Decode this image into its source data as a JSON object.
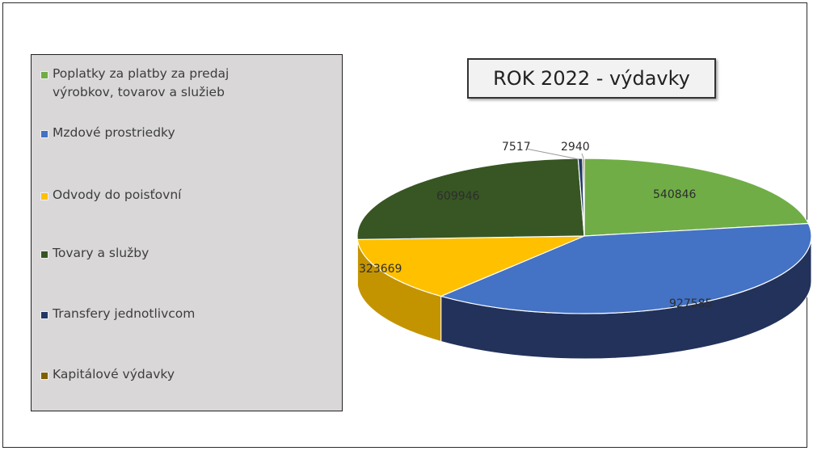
{
  "chart_data": {
    "type": "pie",
    "title": "ROK 2022 - výdavky",
    "legend_position": "left",
    "slices": [
      {
        "name": "Poplatky za platby za predaj výrobkov, tovarov a služieb",
        "value": 540846,
        "color": "#70ad47",
        "dark": "#4e7a31",
        "label": "540846"
      },
      {
        "name": "Mzdové prostriedky",
        "value": 927585,
        "color": "#4472c4",
        "dark": "#22325a",
        "label": "927585"
      },
      {
        "name": "Odvody do poisťovní",
        "value": 323669,
        "color": "#ffc000",
        "dark": "#c49400",
        "label": "323669"
      },
      {
        "name": "Tovary a služby",
        "value": 609946,
        "color": "#375623",
        "dark": "#223616",
        "label": "609946"
      },
      {
        "name": "Transfery jednotlivcom",
        "value": 7517,
        "color": "#203864",
        "dark": "#131f38",
        "label": "7517"
      },
      {
        "name": "Kapitálové výdavky",
        "value": 2940,
        "color": "#806000",
        "dark": "#554000",
        "label": "2940"
      }
    ]
  },
  "legend": {
    "items": [
      {
        "lines": [
          "Poplatky za platby za predaj",
          "výrobkov, tovarov a služieb"
        ],
        "color": "#70ad47"
      },
      {
        "lines": [
          "Mzdové prostriedky"
        ],
        "color": "#4472c4"
      },
      {
        "lines": [
          "Odvody do poisťovní"
        ],
        "color": "#ffc000"
      },
      {
        "lines": [
          "Tovary a služby"
        ],
        "color": "#375623"
      },
      {
        "lines": [
          "Transfery jednotlivcom"
        ],
        "color": "#203864"
      },
      {
        "lines": [
          "Kapitálové výdavky"
        ],
        "color": "#806000"
      }
    ]
  }
}
